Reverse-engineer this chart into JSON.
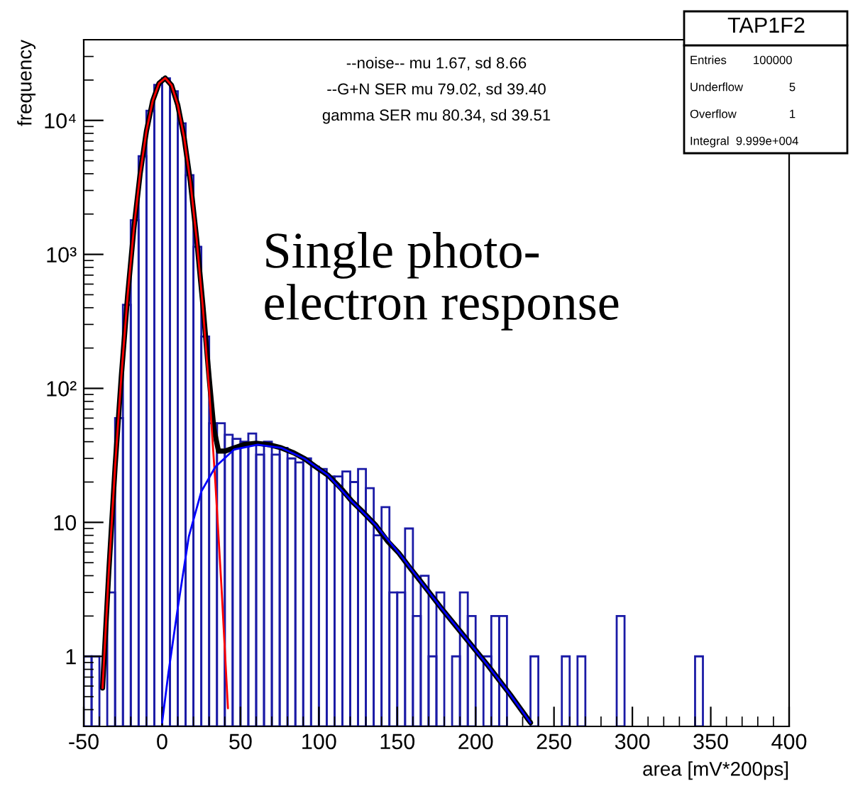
{
  "chart_data": {
    "type": "histogram",
    "xlabel": "area [mV*200ps]",
    "ylabel": "frequency",
    "log": "y",
    "grid": false,
    "legend": false,
    "xlim": [
      -50,
      400
    ],
    "xticks": [
      -50,
      0,
      50,
      100,
      150,
      200,
      250,
      300,
      350,
      400
    ],
    "ylim": [
      0.3,
      40000
    ],
    "yticks": [
      1,
      10,
      {
        "value": 100,
        "label": "10²"
      },
      {
        "value": 1000,
        "label": "10³"
      },
      {
        "value": 10000,
        "label": "10⁴"
      }
    ],
    "series": [
      {
        "type": "histogram",
        "color": "#1a1aa6",
        "bins": [
          -50,
          -45,
          -40,
          -35,
          -30,
          -25,
          -20,
          -15,
          -10,
          -5,
          0,
          5,
          10,
          15,
          20,
          25,
          30,
          35,
          40,
          45,
          50,
          55,
          60,
          65,
          70,
          75,
          80,
          85,
          90,
          95,
          100,
          105,
          110,
          115,
          120,
          125,
          130,
          135,
          140,
          145,
          150,
          155,
          160,
          165,
          170,
          175,
          180,
          185,
          190,
          195,
          200,
          205,
          210,
          215,
          220,
          225,
          230,
          235,
          240,
          245,
          250,
          255,
          260,
          265,
          270,
          275,
          280,
          285,
          290,
          295,
          300,
          305,
          310,
          315,
          320,
          325,
          330,
          335,
          340,
          345,
          350,
          355,
          360,
          365,
          370,
          375,
          380,
          385,
          390,
          395,
          400
        ],
        "values": [
          1,
          1,
          null,
          3,
          60,
          420,
          1800,
          5400,
          11800,
          18400,
          20600,
          16500,
          9500,
          3900,
          1140,
          244,
          55,
          55,
          45,
          42,
          40,
          46,
          32,
          40,
          32,
          36,
          30,
          28,
          30,
          26,
          25,
          22,
          22,
          24,
          20,
          25,
          18,
          8,
          13,
          3,
          3,
          9,
          2,
          4,
          1,
          3,
          null,
          1,
          3,
          2,
          null,
          1,
          2,
          2,
          null,
          null,
          null,
          1,
          null,
          null,
          null,
          1,
          null,
          1,
          null,
          null,
          null,
          null,
          2,
          null,
          null,
          null,
          null,
          null,
          null,
          null,
          null,
          null,
          1,
          null,
          null,
          null,
          null,
          null,
          null,
          null,
          null,
          null,
          null,
          null
        ]
      },
      {
        "type": "line",
        "color": "#000000",
        "x": [
          -38,
          -34,
          -30,
          -26,
          -22,
          -18,
          -14,
          -10,
          -6,
          -2,
          2,
          6,
          10,
          14,
          18,
          22,
          26,
          30,
          33,
          36,
          40,
          46,
          52,
          60,
          68,
          76,
          84,
          91,
          98,
          106,
          114,
          121,
          128,
          136,
          144,
          151,
          158,
          166,
          178,
          193,
          208,
          222,
          235
        ],
        "values": [
          0.58,
          4.3,
          26,
          124,
          492,
          1570,
          4010,
          8330,
          14000,
          18900,
          20700,
          18300,
          13000,
          7510,
          3500,
          1320,
          420,
          120,
          50,
          34,
          34,
          36,
          38,
          39,
          38,
          36,
          33,
          29.8,
          26,
          22.4,
          18,
          14.4,
          12,
          9.6,
          7.2,
          5.9,
          4.6,
          3.5,
          2.3,
          1.4,
          0.85,
          0.52,
          0.32
        ]
      },
      {
        "type": "line",
        "color": "#ff0000",
        "x": [
          -38,
          -34,
          -30,
          -26,
          -22,
          -18,
          -14,
          -10,
          -6,
          -2,
          2,
          6,
          10,
          14,
          18,
          22,
          26,
          30,
          34,
          38,
          42
        ],
        "values": [
          0.58,
          4.3,
          26,
          124,
          492,
          1570,
          4010,
          8330,
          14000,
          18900,
          20700,
          18300,
          13000,
          7510,
          3500,
          1310,
          399,
          98,
          19.5,
          3.1,
          0.41
        ]
      },
      {
        "type": "line",
        "color": "#0000ff",
        "x": [
          0,
          4,
          10,
          17,
          25,
          34,
          46,
          61,
          76,
          91,
          106,
          121,
          136,
          151,
          166,
          178,
          193,
          208,
          222,
          235
        ],
        "values": [
          0.32,
          0.75,
          2.3,
          7.8,
          17,
          26,
          35,
          38,
          36,
          29.8,
          22.4,
          14.4,
          9.6,
          5.9,
          3.5,
          2.3,
          1.4,
          0.85,
          0.52,
          0.32
        ]
      }
    ],
    "annotations": [
      "--noise-- mu 1.67, sd 8.66",
      "--G+N SER mu 79.02, sd 39.40",
      "gamma SER mu 80.34, sd 39.51",
      "Single photo-\nelectron response",
      "TAP1F2",
      "Entries        100000",
      "Underflow              5",
      "Overflow                1",
      "Integral  9.999e+004"
    ]
  }
}
